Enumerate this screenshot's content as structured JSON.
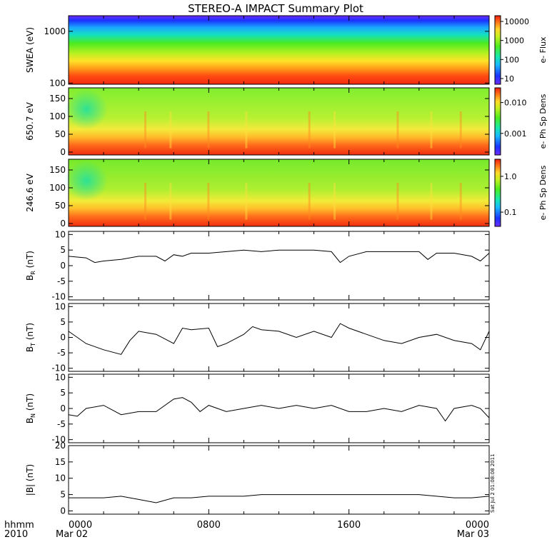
{
  "title": "STEREO-A IMPACT Summary Plot",
  "footer": {
    "hhmm_label": "hhmm",
    "year_label": "2010",
    "date_start": "Mar 02",
    "date_end": "Mar 03",
    "stamp": "Sat Jul  2 01:08:08 2011"
  },
  "chart_data": [
    {
      "type": "heatmap",
      "ylabel": "SWEA (eV)",
      "yscale": "log",
      "ylim": [
        95,
        2000
      ],
      "yticks": [
        "100",
        "1000"
      ],
      "colorbar": {
        "label": "e- Flux",
        "scale": "log",
        "ticks": [
          "10",
          "100",
          "1000",
          "10000"
        ],
        "range": [
          5,
          20000
        ]
      },
      "description_bands": [
        {
          "energy_eV": 1800,
          "level": "blue"
        },
        {
          "energy_eV": 1000,
          "level": "green"
        },
        {
          "energy_eV": 300,
          "level": "yellow"
        },
        {
          "energy_eV": 120,
          "level": "red"
        }
      ]
    },
    {
      "type": "heatmap",
      "ylabel": "650.7 eV",
      "ylim": [
        -8,
        180
      ],
      "yticks": [
        "0",
        "50",
        "100",
        "150"
      ],
      "colorbar": {
        "label": "e- Ph Sp Dens",
        "scale": "log",
        "ticks": [
          "0.001",
          "0.010"
        ],
        "range": [
          0.0002,
          0.03
        ]
      }
    },
    {
      "type": "heatmap",
      "ylabel": "246.6 eV",
      "ylim": [
        -8,
        180
      ],
      "yticks": [
        "0",
        "50",
        "100",
        "150"
      ],
      "colorbar": {
        "label": "e- Ph Sp Dens",
        "scale": "log",
        "ticks": [
          "0.1",
          "1.0"
        ],
        "range": [
          0.04,
          3
        ]
      }
    },
    {
      "type": "line",
      "ylabel": "B",
      "ylabel_sub": "R",
      "ylabel_unit": "(nT)",
      "ylim": [
        -11,
        11
      ],
      "yticks": [
        "-10",
        "-5",
        "0",
        "5",
        "10"
      ],
      "x": [
        0,
        1,
        1.5,
        2,
        3,
        4,
        5,
        5.5,
        6,
        6.5,
        7,
        8,
        9,
        10,
        11,
        12,
        13,
        14,
        15,
        15.5,
        16,
        17,
        18,
        19,
        20,
        20.5,
        21,
        22,
        23,
        23.5,
        24
      ],
      "y": [
        3,
        2.5,
        1,
        1.5,
        2,
        3,
        3,
        1.5,
        3.5,
        3,
        4,
        4,
        4.5,
        5,
        4.5,
        5,
        5,
        5,
        4.5,
        1,
        3,
        4.5,
        4.5,
        4.5,
        4.5,
        2,
        4,
        4,
        3,
        1.5,
        4
      ]
    },
    {
      "type": "line",
      "ylabel": "B",
      "ylabel_sub": "T",
      "ylabel_unit": "(nT)",
      "ylim": [
        -11,
        11
      ],
      "yticks": [
        "-10",
        "-5",
        "0",
        "5",
        "10"
      ],
      "x": [
        0,
        1,
        2,
        3,
        3.5,
        4,
        5,
        6,
        6.5,
        7,
        8,
        8.5,
        9,
        10,
        10.5,
        11,
        12,
        13,
        14,
        15,
        15.5,
        16,
        17,
        18,
        19,
        20,
        21,
        22,
        23,
        23.5,
        24
      ],
      "y": [
        2,
        -2,
        -4,
        -5.5,
        -1,
        2,
        1,
        -2,
        3,
        2.5,
        3,
        -3,
        -2,
        1,
        3.5,
        2.5,
        2,
        0,
        2,
        0,
        4.5,
        3,
        1,
        -1,
        -2,
        0,
        1,
        -1,
        -2,
        -4,
        2
      ]
    },
    {
      "type": "line",
      "ylabel": "B",
      "ylabel_sub": "N",
      "ylabel_unit": "(nT)",
      "ylim": [
        -11,
        11
      ],
      "yticks": [
        "-10",
        "-5",
        "0",
        "5",
        "10"
      ],
      "x": [
        0,
        0.5,
        1,
        2,
        3,
        4,
        5,
        6,
        6.5,
        7,
        7.5,
        8,
        9,
        10,
        11,
        12,
        13,
        14,
        15,
        16,
        17,
        18,
        19,
        20,
        21,
        21.5,
        22,
        23,
        23.5,
        24
      ],
      "y": [
        -2,
        -2.5,
        0,
        1,
        -2,
        -1,
        -1,
        3,
        3.5,
        2,
        -1,
        1,
        -1,
        0,
        1,
        0,
        1,
        0,
        1,
        -1,
        -1,
        0,
        -1,
        1,
        0,
        -4,
        0,
        1,
        0,
        -3
      ]
    },
    {
      "type": "line",
      "ylabel": "|B|",
      "ylabel_unit": "(nT)",
      "ylim": [
        -1,
        20
      ],
      "yticks": [
        "0",
        "5",
        "10",
        "15",
        "20"
      ],
      "x": [
        0,
        1,
        2,
        3,
        4,
        5,
        6,
        7,
        8,
        9,
        10,
        11,
        12,
        13,
        14,
        15,
        16,
        17,
        18,
        19,
        20,
        21,
        22,
        23,
        24
      ],
      "y": [
        4,
        4,
        4,
        4.5,
        3.5,
        2.5,
        4,
        4,
        4.5,
        4.5,
        4.5,
        5,
        5,
        5,
        5,
        5,
        5,
        5,
        5,
        5,
        5,
        4.5,
        4,
        4,
        4.5
      ]
    }
  ],
  "xaxis": {
    "ticks": [
      "0000",
      "0800",
      "1600",
      "0000"
    ],
    "range_hours": [
      0,
      24
    ]
  },
  "colors": {
    "frame": "#000000",
    "line": "#000000"
  }
}
